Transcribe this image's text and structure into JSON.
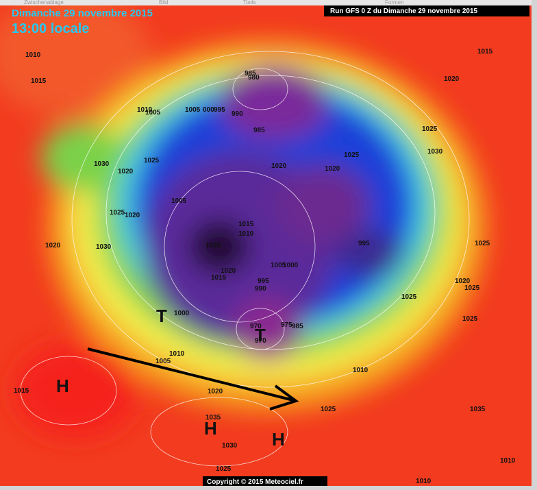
{
  "header": {
    "date": "Dimanche 29 novembre 2015",
    "time": "13:00 locale",
    "run": "Run GFS 0 Z du Dimanche 29 novembre 2015",
    "menu": [
      "Zwischenablage",
      "Bild",
      "Tools",
      "Formen"
    ]
  },
  "footer": {
    "copyright": "Copyright © 2015 Meteociel.fr"
  },
  "isobar_labels": [
    "1010",
    "1015",
    "1015",
    "1020",
    "1025",
    "1030",
    "985",
    "980",
    "1010",
    "1005",
    "1005",
    "000",
    "995",
    "990",
    "985",
    "1025",
    "1030",
    "1020",
    "1020",
    "1020",
    "1025",
    "1005",
    "1025",
    "1020",
    "1015",
    "1010",
    "1025",
    "995",
    "1020",
    "1030",
    "1025",
    "1005",
    "1000",
    "1020",
    "1015",
    "995",
    "990",
    "1020",
    "1025",
    "1025",
    "1000",
    "1025",
    "970",
    "970",
    "975",
    "985",
    "1010",
    "1005",
    "1010",
    "1015",
    "1020",
    "1025",
    "1035",
    "1035",
    "1030",
    "1025",
    "1010",
    "1010"
  ],
  "pressure_centers": [
    "H",
    "H",
    "H",
    "T",
    "T"
  ]
}
